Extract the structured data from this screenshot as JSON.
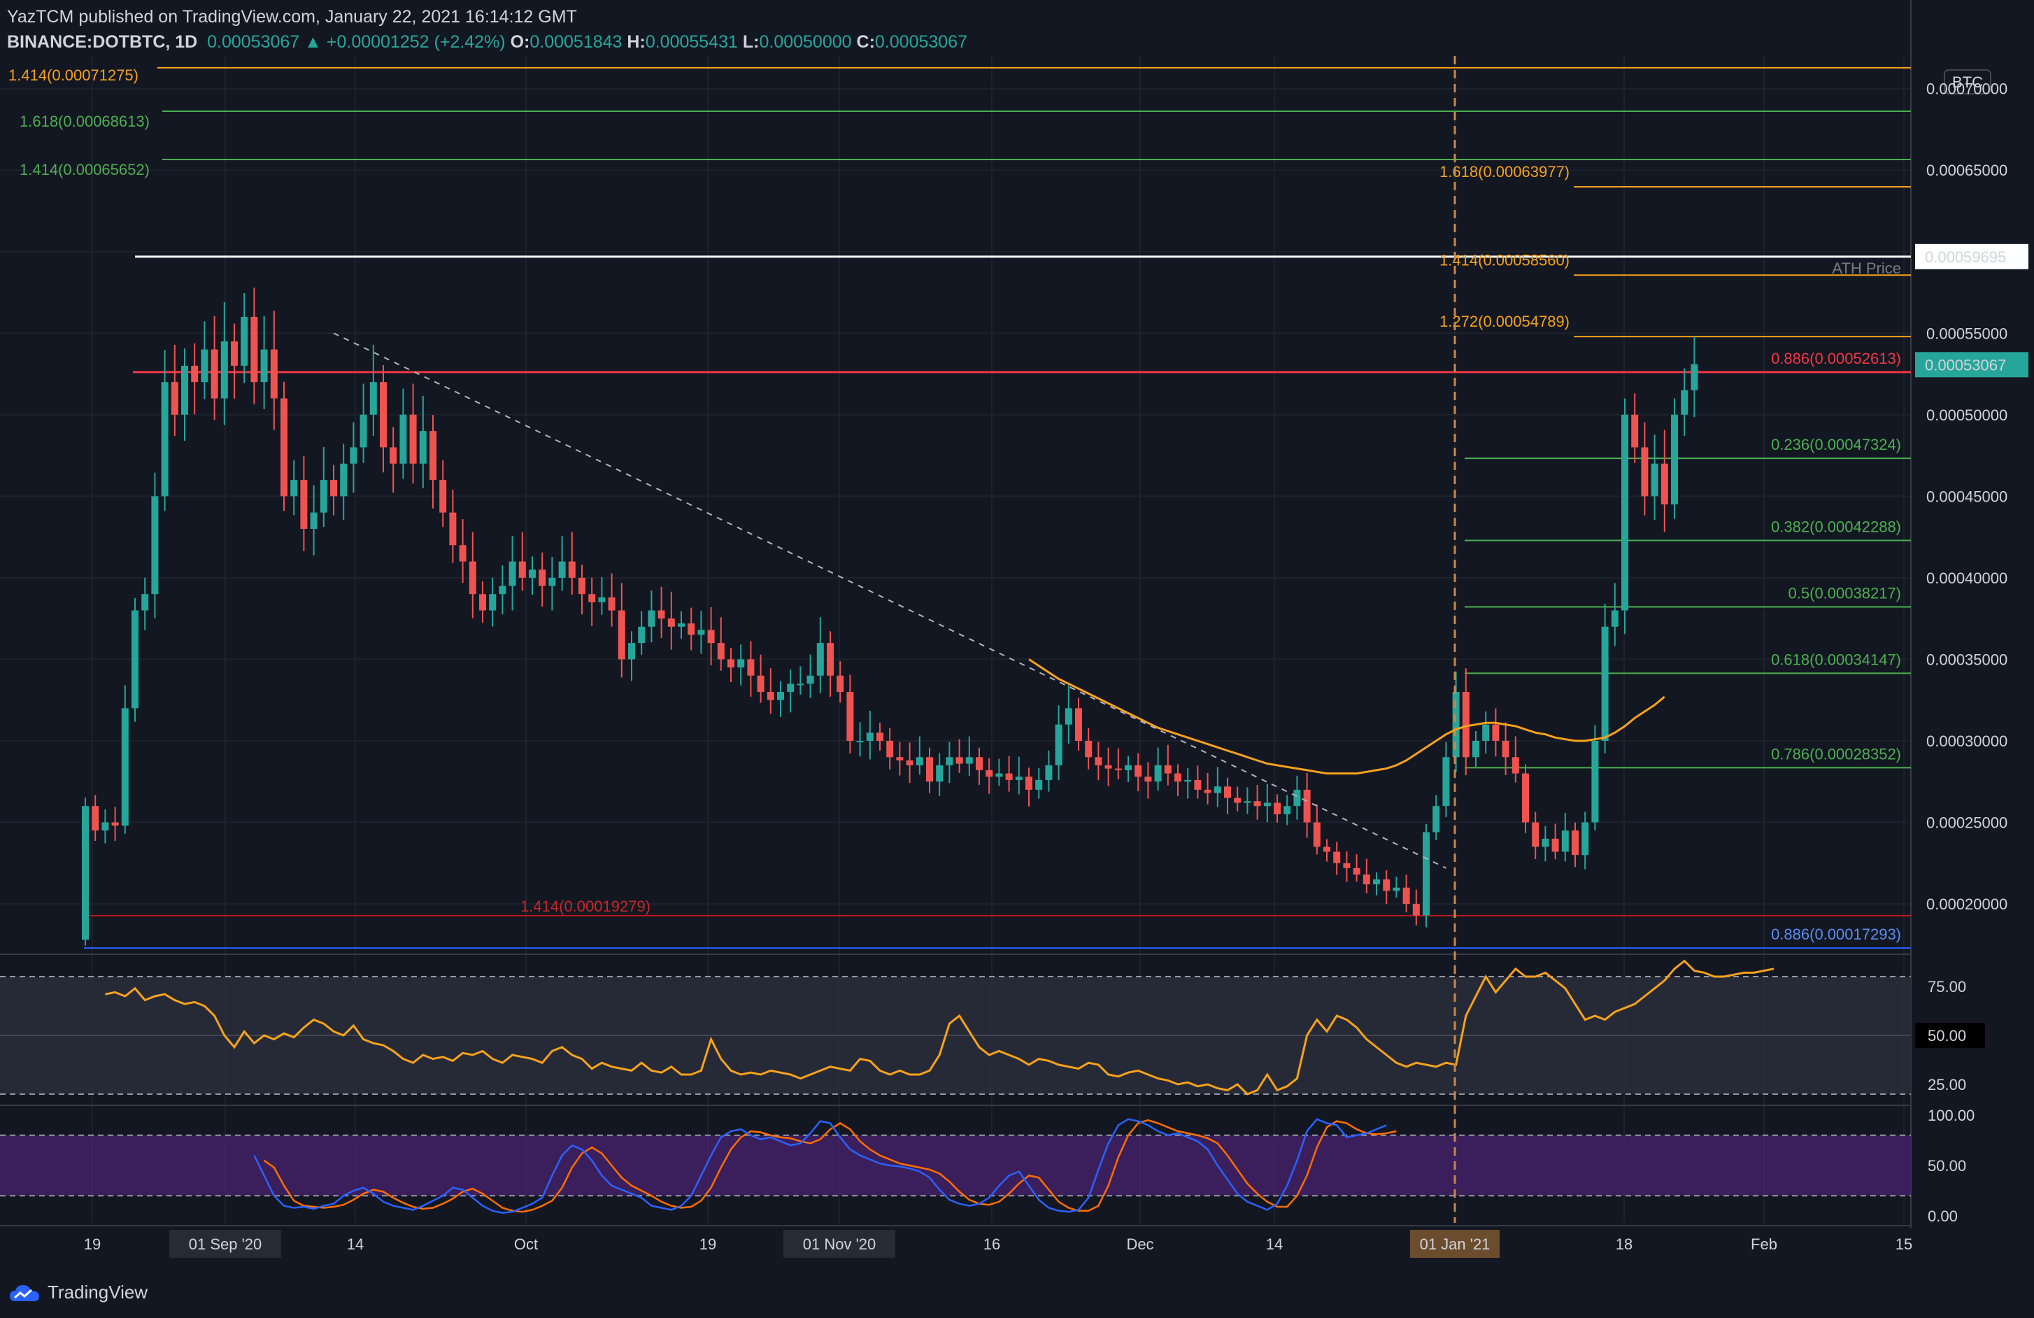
{
  "header": {
    "publisher_line": "YazTCM published on TradingView.com, January 22, 2021 16:14:12 GMT",
    "symbol": "BINANCE:DOTBTC, 1D",
    "price": "0.00053067",
    "change": "+0.00001252 (+2.42%)",
    "o_label": "O:",
    "o_value": "0.00051843",
    "h_label": "H:",
    "h_value": "0.00055431",
    "l_label": "L:",
    "l_value": "0.00050000",
    "c_label": "C:",
    "c_value": "0.00053067"
  },
  "brand": "TradingView",
  "colors": {
    "up": "#26a69a",
    "down": "#ef5350",
    "bg": "#131722",
    "orange": "#f7a21b",
    "green": "#4caf50",
    "red": "#f23645",
    "blue": "#2962ff"
  },
  "chart_data": [
    {
      "type": "candlestick",
      "currency": "BTC",
      "ylim": [
        0.00017,
        0.00072
      ],
      "y_ticks": [
        "0.00070000",
        "0.00065000",
        "0.00060000",
        "0.00055000",
        "0.00050000",
        "0.00045000",
        "0.00040000",
        "0.00035000",
        "0.00030000",
        "0.00025000",
        "0.00020000"
      ],
      "x_ticks": [
        "19",
        "01 Sep '20",
        "14",
        "Oct",
        "19",
        "01 Nov '20",
        "16",
        "Dec",
        "14",
        "01 Jan '21",
        "18",
        "Feb",
        "15"
      ],
      "price_tags": [
        {
          "label": "0.00059695",
          "style": "white"
        },
        {
          "label": "0.00053067",
          "style": "teal"
        }
      ],
      "horizontal_levels": [
        {
          "label": "1.414(0.00071275)",
          "value": 0.00071275,
          "color": "#f7a21b",
          "side": "left"
        },
        {
          "label": "1.618(0.00068613)",
          "value": 0.00068613,
          "color": "#4caf50",
          "side": "left"
        },
        {
          "label": "1.414(0.00065652)",
          "value": 0.00065652,
          "color": "#4caf50",
          "side": "left"
        },
        {
          "label": "1.618(0.00063977)",
          "value": 0.00063977,
          "color": "#f7a21b",
          "side": "mid"
        },
        {
          "label": "ATH Price",
          "value": 0.00059695,
          "color": "#ffffff",
          "side": "right"
        },
        {
          "label": "1.414(0.00058560)",
          "value": 0.0005856,
          "color": "#f7a21b",
          "side": "mid"
        },
        {
          "label": "1.272(0.00054789)",
          "value": 0.00054789,
          "color": "#f7a21b",
          "side": "mid"
        },
        {
          "label": "0.886(0.00052613)",
          "value": 0.00052613,
          "color": "#f23645",
          "side": "right"
        },
        {
          "label": "0.236(0.00047324)",
          "value": 0.00047324,
          "color": "#4caf50",
          "side": "right"
        },
        {
          "label": "0.382(0.00042288)",
          "value": 0.00042288,
          "color": "#4caf50",
          "side": "right"
        },
        {
          "label": "0.5(0.00038217)",
          "value": 0.00038217,
          "color": "#4caf50",
          "side": "right"
        },
        {
          "label": "0.618(0.00034147)",
          "value": 0.00034147,
          "color": "#4caf50",
          "side": "right"
        },
        {
          "label": "0.786(0.00028352)",
          "value": 0.00028352,
          "color": "#4caf50",
          "side": "right"
        },
        {
          "label": "1.414(0.00019279)",
          "value": 0.00019279,
          "color": "#b71c1c",
          "side": "mid"
        },
        {
          "label": "0.886(0.00017293)",
          "value": 0.00017293,
          "color": "#2962ff",
          "side": "right"
        }
      ],
      "closes": [
        0.00026,
        0.000245,
        0.00025,
        0.000248,
        0.00032,
        0.00038,
        0.00039,
        0.00045,
        0.00052,
        0.0005,
        0.00053,
        0.00052,
        0.00054,
        0.00051,
        0.000545,
        0.00053,
        0.00056,
        0.00052,
        0.00054,
        0.00051,
        0.00045,
        0.00046,
        0.00043,
        0.00044,
        0.00046,
        0.00045,
        0.00047,
        0.00048,
        0.0005,
        0.00052,
        0.00048,
        0.00047,
        0.0005,
        0.00047,
        0.00049,
        0.00046,
        0.00044,
        0.00042,
        0.00041,
        0.00039,
        0.00038,
        0.00039,
        0.000395,
        0.00041,
        0.0004,
        0.000405,
        0.000395,
        0.0004,
        0.00041,
        0.0004,
        0.00039,
        0.000385,
        0.000388,
        0.00038,
        0.00035,
        0.00036,
        0.00037,
        0.00038,
        0.000375,
        0.00037,
        0.000372,
        0.000365,
        0.000368,
        0.00036,
        0.00035,
        0.000345,
        0.00035,
        0.00034,
        0.00033,
        0.000325,
        0.00033,
        0.000335,
        0.000335,
        0.00034,
        0.00036,
        0.00034,
        0.00033,
        0.0003,
        0.0003,
        0.000305,
        0.0003,
        0.00029,
        0.000288,
        0.000285,
        0.00029,
        0.000275,
        0.000285,
        0.00029,
        0.000286,
        0.00029,
        0.000282,
        0.000278,
        0.00028,
        0.000276,
        0.000278,
        0.00027,
        0.000276,
        0.000285,
        0.00031,
        0.00032,
        0.0003,
        0.00029,
        0.000285,
        0.000283,
        0.000282,
        0.000285,
        0.000278,
        0.000275,
        0.000285,
        0.00028,
        0.000275,
        0.000276,
        0.00027,
        0.000268,
        0.000272,
        0.000265,
        0.000262,
        0.000263,
        0.00026,
        0.000262,
        0.000255,
        0.00026,
        0.00027,
        0.00025,
        0.000235,
        0.000232,
        0.000225,
        0.000222,
        0.000218,
        0.000212,
        0.000215,
        0.000208,
        0.00021,
        0.0002,
        0.000193,
        0.000244,
        0.00026,
        0.00029,
        0.00033,
        0.00029,
        0.0003,
        0.00031,
        0.0003,
        0.00029,
        0.00028,
        0.00025,
        0.000235,
        0.00024,
        0.000232,
        0.000245,
        0.00023,
        0.00025,
        0.0003,
        0.00037,
        0.00038,
        0.0005,
        0.00048,
        0.00045,
        0.00047,
        0.000445,
        0.0005,
        0.000515,
        0.000531
      ],
      "ma": {
        "color": "#f7a21b",
        "start_index": 95,
        "values": [
          0.00035,
          0.000346,
          0.000342,
          0.000338,
          0.000335,
          0.000332,
          0.000329,
          0.000326,
          0.000323,
          0.00032,
          0.000317,
          0.000314,
          0.000311,
          0.000308,
          0.000306,
          0.000304,
          0.000302,
          0.0003,
          0.000298,
          0.000296,
          0.000294,
          0.000292,
          0.00029,
          0.000288,
          0.000286,
          0.000285,
          0.000284,
          0.000283,
          0.000282,
          0.000281,
          0.00028,
          0.00028,
          0.00028,
          0.00028,
          0.000281,
          0.000282,
          0.000283,
          0.000285,
          0.000288,
          0.000292,
          0.000296,
          0.0003,
          0.000304,
          0.000307,
          0.000309,
          0.00031,
          0.000311,
          0.000311,
          0.00031,
          0.000309,
          0.000307,
          0.000305,
          0.000304,
          0.000302,
          0.000301,
          0.0003,
          0.0003,
          0.000301,
          0.000302,
          0.000305,
          0.000309,
          0.000314,
          0.000318,
          0.000322,
          0.000327
        ]
      },
      "trendline": {
        "style": "dashed",
        "color": "#b2b5be",
        "from": [
          25,
          0.00055
        ],
        "to": [
          137,
          0.000222
        ]
      }
    },
    {
      "type": "line",
      "indicator": "RSI",
      "ylim": [
        15,
        90
      ],
      "y_ticks": [
        "75.00",
        "50.00",
        "25.00"
      ],
      "levels": [
        80,
        50,
        20
      ],
      "current_label": "50.00",
      "values": [
        71,
        72,
        70,
        74,
        68,
        70,
        71,
        68,
        66,
        67,
        65,
        60,
        50,
        44,
        52,
        46,
        50,
        48,
        51,
        49,
        54,
        58,
        56,
        52,
        50,
        55,
        48,
        46,
        45,
        42,
        38,
        36,
        40,
        38,
        39,
        37,
        41,
        40,
        42,
        38,
        36,
        40,
        39,
        38,
        36,
        42,
        44,
        40,
        38,
        33,
        36,
        34,
        33,
        32,
        36,
        32,
        31,
        34,
        30,
        30,
        32,
        48,
        38,
        32,
        30,
        31,
        30,
        32,
        31,
        30,
        28,
        30,
        32,
        34,
        33,
        32,
        38,
        37,
        32,
        30,
        32,
        30,
        30,
        32,
        40,
        56,
        60,
        52,
        44,
        40,
        42,
        40,
        38,
        35,
        38,
        37,
        35,
        34,
        33,
        36,
        35,
        30,
        29,
        31,
        32,
        30,
        28,
        27,
        25,
        26,
        24,
        25,
        23,
        22,
        25,
        20,
        22,
        30,
        22,
        24,
        28,
        50,
        58,
        52,
        60,
        58,
        54,
        48,
        44,
        40,
        36,
        34,
        36,
        35,
        34,
        36,
        35,
        60,
        70,
        80,
        72,
        78,
        84,
        80,
        80,
        82,
        78,
        74,
        66,
        58,
        60,
        58,
        62,
        64,
        66,
        70,
        74,
        78,
        84,
        88,
        83,
        82,
        80,
        80,
        81,
        82,
        82,
        83,
        84
      ]
    },
    {
      "type": "line",
      "indicator": "Stoch RSI",
      "ylim": [
        0,
        100
      ],
      "y_ticks": [
        "100.00",
        "50.00",
        "0.00"
      ],
      "levels": [
        80,
        20
      ],
      "k_color": "#2962ff",
      "d_color": "#ff6d00",
      "k": [
        60,
        40,
        20,
        10,
        8,
        9,
        7,
        10,
        12,
        20,
        25,
        28,
        22,
        14,
        10,
        8,
        6,
        10,
        15,
        20,
        28,
        26,
        18,
        10,
        5,
        3,
        4,
        8,
        12,
        18,
        40,
        60,
        70,
        66,
        55,
        40,
        30,
        26,
        22,
        18,
        10,
        8,
        6,
        10,
        20,
        40,
        60,
        78,
        84,
        86,
        80,
        76,
        78,
        74,
        70,
        72,
        82,
        94,
        92,
        78,
        66,
        60,
        56,
        52,
        50,
        49,
        47,
        44,
        38,
        26,
        16,
        12,
        10,
        12,
        18,
        30,
        40,
        44,
        30,
        16,
        8,
        5,
        4,
        6,
        18,
        46,
        72,
        90,
        96,
        94,
        90,
        84,
        80,
        82,
        78,
        74,
        66,
        50,
        36,
        22,
        14,
        10,
        6,
        12,
        30,
        55,
        84,
        96,
        92,
        90,
        78,
        80,
        82,
        86,
        90
      ],
      "d": [
        55,
        48,
        30,
        15,
        10,
        9,
        8,
        9,
        11,
        16,
        22,
        26,
        24,
        18,
        13,
        9,
        7,
        8,
        12,
        17,
        24,
        27,
        22,
        15,
        8,
        5,
        4,
        6,
        10,
        15,
        28,
        48,
        62,
        68,
        62,
        50,
        38,
        30,
        25,
        20,
        14,
        10,
        8,
        9,
        15,
        28,
        48,
        66,
        78,
        84,
        83,
        80,
        78,
        77,
        74,
        72,
        76,
        86,
        92,
        86,
        74,
        66,
        60,
        56,
        52,
        50,
        48,
        46,
        42,
        34,
        24,
        16,
        12,
        11,
        14,
        22,
        32,
        40,
        38,
        26,
        14,
        8,
        5,
        5,
        10,
        30,
        58,
        80,
        92,
        95,
        92,
        88,
        84,
        82,
        80,
        77,
        72,
        60,
        46,
        32,
        22,
        14,
        9,
        9,
        20,
        40,
        68,
        88,
        94,
        92,
        86,
        82,
        81,
        82,
        84
      ]
    }
  ]
}
